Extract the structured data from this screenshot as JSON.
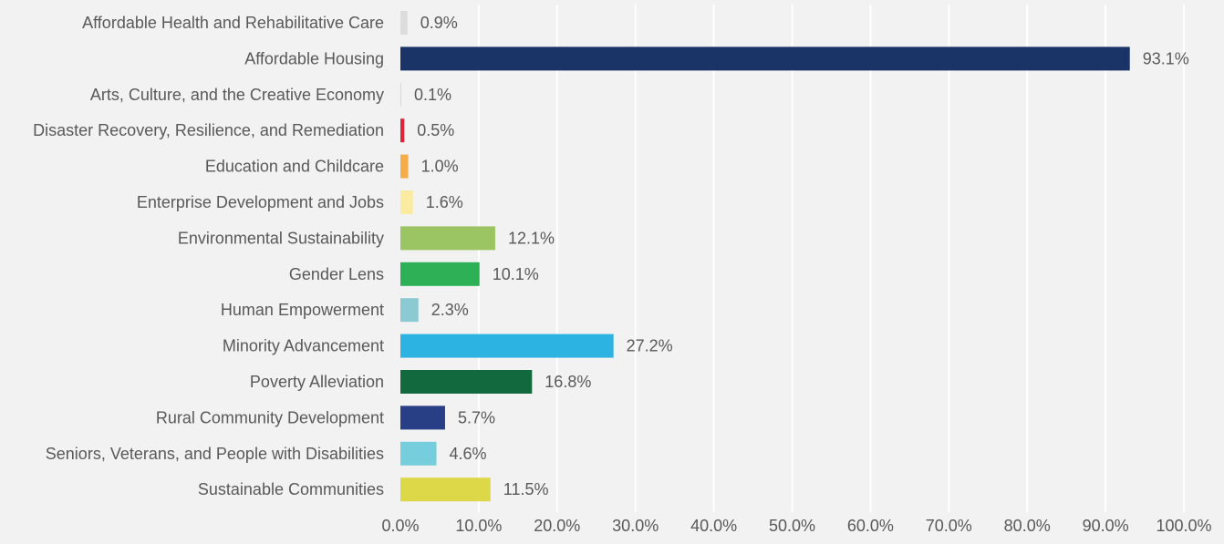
{
  "chart_data": {
    "type": "bar",
    "orientation": "horizontal",
    "title": "",
    "xlabel": "",
    "ylabel": "",
    "xlim": [
      0,
      100
    ],
    "grid": true,
    "legend": "none",
    "categories": [
      "Affordable Health and Rehabilitative Care",
      "Affordable Housing",
      "Arts, Culture, and the Creative Economy",
      "Disaster Recovery, Resilience, and Remediation",
      "Education and Childcare",
      "Enterprise Development and Jobs",
      "Environmental Sustainability",
      "Gender Lens",
      "Human Empowerment",
      "Minority Advancement",
      "Poverty Alleviation",
      "Rural Community Development",
      "Seniors, Veterans, and People with Disabilities",
      "Sustainable Communities"
    ],
    "values": [
      0.9,
      93.1,
      0.1,
      0.5,
      1.0,
      1.6,
      12.1,
      10.1,
      2.3,
      27.2,
      16.8,
      5.7,
      4.6,
      11.5
    ],
    "value_labels": [
      "0.9%",
      "93.1%",
      "0.1%",
      "0.5%",
      "1.0%",
      "1.6%",
      "12.1%",
      "10.1%",
      "2.3%",
      "27.2%",
      "16.8%",
      "5.7%",
      "4.6%",
      "11.5%"
    ],
    "colors": [
      "#dcdcdc",
      "#1b3467",
      "#d8d8d8",
      "#e0243a",
      "#f5ad47",
      "#f9eca1",
      "#9bc462",
      "#2eb056",
      "#8ccad3",
      "#2db3e1",
      "#13693e",
      "#283f86",
      "#76cedd",
      "#dcd847"
    ],
    "x_ticks": [
      0,
      10,
      20,
      30,
      40,
      50,
      60,
      70,
      80,
      90,
      100
    ],
    "x_tick_labels": [
      "0.0%",
      "10.0%",
      "20.0%",
      "30.0%",
      "40.0%",
      "50.0%",
      "60.0%",
      "70.0%",
      "80.0%",
      "90.0%",
      "100.0%"
    ]
  }
}
